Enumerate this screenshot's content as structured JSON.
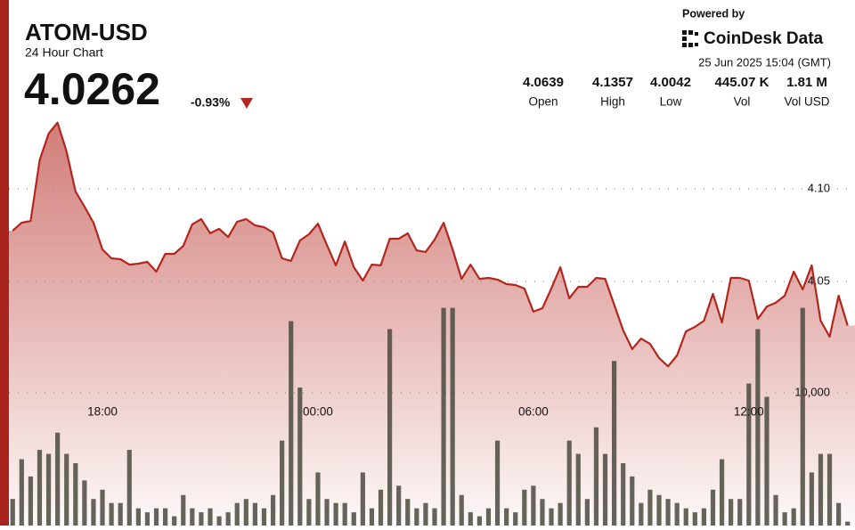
{
  "header": {
    "symbol": "ATOM-USD",
    "subtitle": "24 Hour Chart",
    "price": "4.0262",
    "change": "-0.93%"
  },
  "branding": {
    "powered_by": "Powered by",
    "brand": "CoinDesk Data",
    "timestamp": "25 Jun 2025 15:04 (GMT)"
  },
  "stats": [
    {
      "value": "4.0639",
      "label": "Open"
    },
    {
      "value": "4.1357",
      "label": "High"
    },
    {
      "value": "4.0042",
      "label": "Low"
    },
    {
      "value": "445.07 K",
      "label": "Vol"
    },
    {
      "value": "1.81 M",
      "label": "Vol USD"
    }
  ],
  "chart_data": {
    "type": "line",
    "categories": [
      null,
      null,
      null,
      null,
      null,
      null,
      null,
      null,
      null,
      null,
      "18:00",
      null,
      null,
      null,
      null,
      null,
      null,
      null,
      null,
      null,
      null,
      null,
      null,
      null,
      null,
      null,
      null,
      null,
      null,
      null,
      null,
      null,
      null,
      null,
      "00:00",
      null,
      null,
      null,
      null,
      null,
      null,
      null,
      null,
      null,
      null,
      null,
      null,
      null,
      null,
      null,
      null,
      null,
      null,
      null,
      null,
      null,
      null,
      null,
      "06:00",
      null,
      null,
      null,
      null,
      null,
      null,
      null,
      null,
      null,
      null,
      null,
      null,
      null,
      null,
      null,
      null,
      null,
      null,
      null,
      null,
      null,
      null,
      null,
      "12:00",
      null,
      null,
      null,
      null,
      null,
      null,
      null,
      null,
      null,
      null,
      null
    ],
    "series": [
      {
        "type": "line",
        "color": "#b3261e",
        "values": [
          4.0774,
          4.0817,
          4.0827,
          4.1154,
          4.1298,
          4.1357,
          4.1202,
          4.0986,
          4.0904,
          4.0817,
          4.0673,
          4.0625,
          4.062,
          4.0591,
          4.0596,
          4.0606,
          4.0553,
          4.0649,
          4.0649,
          4.0692,
          4.0808,
          4.0837,
          4.076,
          4.0784,
          4.074,
          4.0822,
          4.0837,
          4.0803,
          4.0793,
          4.0764,
          4.0625,
          4.0611,
          4.0721,
          4.0755,
          4.0812,
          4.0697,
          4.0587,
          4.0716,
          4.0577,
          4.0505,
          4.0591,
          4.0587,
          4.0731,
          4.0731,
          4.076,
          4.0668,
          4.0659,
          4.0726,
          4.0817,
          4.0673,
          4.0514,
          4.0591,
          4.0514,
          4.0519,
          4.051,
          4.0486,
          4.0481,
          4.0462,
          4.0337,
          4.0356,
          4.0462,
          4.0577,
          4.0409,
          4.0471,
          4.0471,
          4.0519,
          4.0514,
          4.0375,
          4.0236,
          4.0135,
          4.0192,
          4.0163,
          4.0087,
          4.0042,
          4.0101,
          4.0231,
          4.0255,
          4.0288,
          4.0433,
          4.0279,
          4.0519,
          4.0519,
          4.0505,
          4.0298,
          4.0365,
          4.0385,
          4.0423,
          4.0553,
          4.0457,
          4.0587,
          4.0288,
          4.0202,
          4.0423,
          4.0262
        ]
      },
      {
        "type": "bar",
        "axis": "y2",
        "color": "#4a4a40",
        "values": [
          2000,
          5000,
          3700,
          5700,
          5400,
          7000,
          5400,
          4700,
          3400,
          2000,
          2700,
          1700,
          1700,
          5700,
          1300,
          1000,
          1300,
          1300,
          700,
          2300,
          1300,
          1000,
          1300,
          700,
          1000,
          1700,
          2000,
          1700,
          1300,
          2300,
          6400,
          15400,
          10400,
          2000,
          4000,
          2000,
          1700,
          1700,
          1000,
          4000,
          1300,
          2700,
          14800,
          3000,
          2000,
          1300,
          1700,
          1300,
          16400,
          16400,
          2300,
          1000,
          700,
          1300,
          6400,
          1300,
          1000,
          2700,
          3000,
          2000,
          1300,
          1700,
          6400,
          5400,
          2000,
          7400,
          5400,
          12400,
          4700,
          3700,
          1700,
          2700,
          2300,
          2000,
          1700,
          1300,
          1000,
          1300,
          2700,
          5000,
          2000,
          2000,
          10700,
          14800,
          9700,
          2300,
          1000,
          1300,
          16400,
          4000,
          5400,
          5400,
          1700,
          300
        ]
      }
    ],
    "ylim": [
      3.92,
      4.2
    ],
    "yticks": [
      4.05,
      {
        "value": 4.1,
        "label": "4.10"
      }
    ],
    "y2lim": [
      0,
      40000
    ],
    "y2ticks": [
      {
        "value": 10000,
        "label": "10,000"
      }
    ],
    "grid": true
  }
}
